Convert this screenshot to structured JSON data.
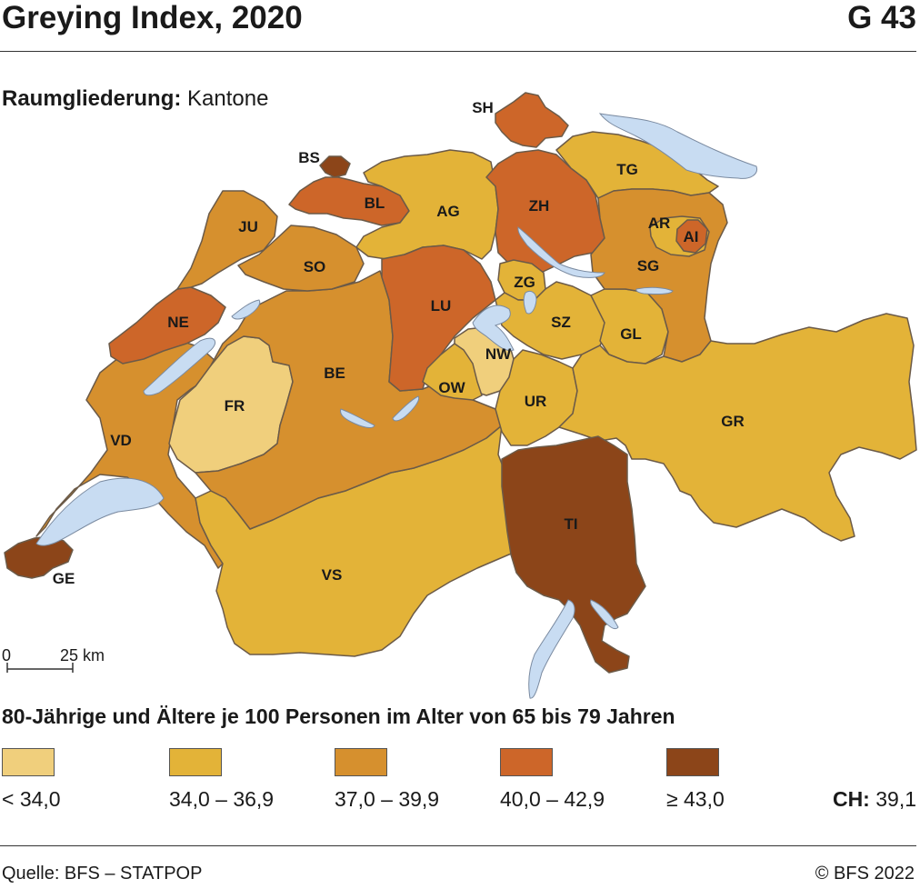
{
  "header": {
    "title": "Greying Index, 2020",
    "figure_id": "G 43"
  },
  "subtitle": {
    "label": "Raumgliederung:",
    "value": "Kantone"
  },
  "colors": {
    "class1": "#f0cf7c",
    "class2": "#e3b338",
    "class3": "#d6902e",
    "class4": "#cd6629",
    "class5": "#8c4519",
    "lake": "#c8dcf2",
    "border": "#6b5a48"
  },
  "cantons": [
    {
      "code": "GE",
      "label": "GE",
      "class": 5
    },
    {
      "code": "VD",
      "label": "VD",
      "class": 3
    },
    {
      "code": "VS",
      "label": "VS",
      "class": 2
    },
    {
      "code": "FR",
      "label": "FR",
      "class": 1
    },
    {
      "code": "NE",
      "label": "NE",
      "class": 4
    },
    {
      "code": "JU",
      "label": "JU",
      "class": 3
    },
    {
      "code": "BE",
      "label": "BE",
      "class": 3
    },
    {
      "code": "SO",
      "label": "SO",
      "class": 3
    },
    {
      "code": "BS",
      "label": "BS",
      "class": 5
    },
    {
      "code": "BL",
      "label": "BL",
      "class": 4
    },
    {
      "code": "AG",
      "label": "AG",
      "class": 2
    },
    {
      "code": "LU",
      "label": "LU",
      "class": 4
    },
    {
      "code": "ZH",
      "label": "ZH",
      "class": 4
    },
    {
      "code": "SH",
      "label": "SH",
      "class": 4
    },
    {
      "code": "TG",
      "label": "TG",
      "class": 2
    },
    {
      "code": "ZG",
      "label": "ZG",
      "class": 2
    },
    {
      "code": "SZ",
      "label": "SZ",
      "class": 2
    },
    {
      "code": "NW",
      "label": "NW",
      "class": 1
    },
    {
      "code": "OW",
      "label": "OW",
      "class": 2
    },
    {
      "code": "UR",
      "label": "UR",
      "class": 2
    },
    {
      "code": "GL",
      "label": "GL",
      "class": 2
    },
    {
      "code": "SG",
      "label": "SG",
      "class": 3
    },
    {
      "code": "AR",
      "label": "AR",
      "class": 2
    },
    {
      "code": "AI",
      "label": "AI",
      "class": 4
    },
    {
      "code": "GR",
      "label": "GR",
      "class": 2
    },
    {
      "code": "TI",
      "label": "TI",
      "class": 5
    }
  ],
  "scale_bar": {
    "start_label": "0",
    "end_label": "25 km"
  },
  "legend": {
    "title": "80-Jährige und Ältere je 100 Personen im Alter von 65 bis 79 Jahren",
    "classes": [
      {
        "label": "< 34,0",
        "color": "#f0cf7c"
      },
      {
        "label": "34,0 – 36,9",
        "color": "#e3b338"
      },
      {
        "label": "37,0 – 39,9",
        "color": "#d6902e"
      },
      {
        "label": "40,0 – 42,9",
        "color": "#cd6629"
      },
      {
        "label": "≥ 43,0",
        "color": "#8c4519"
      }
    ]
  },
  "national": {
    "label": "CH:",
    "value": "39,1"
  },
  "footer": {
    "source": "Quelle: BFS – STATPOP",
    "copyright": "© BFS 2022"
  }
}
